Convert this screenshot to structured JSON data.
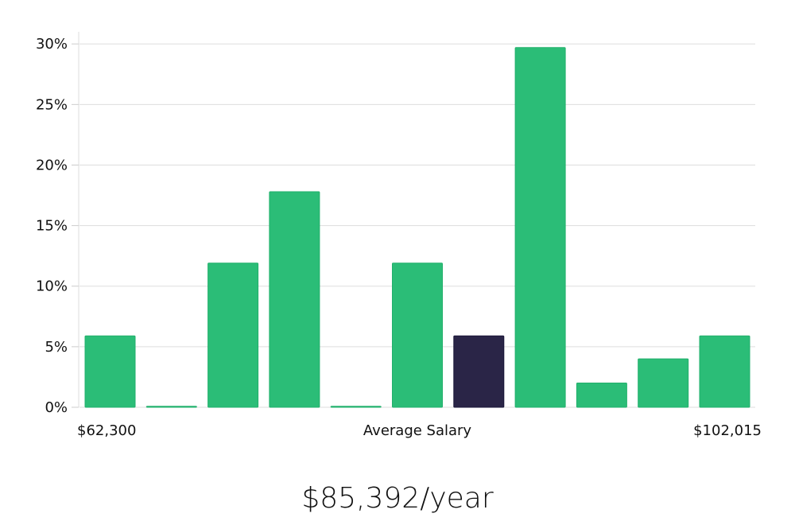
{
  "chart_data": {
    "type": "bar",
    "values": [
      5.9,
      0.0,
      11.9,
      17.8,
      0.0,
      11.9,
      5.9,
      29.7,
      2.0,
      4.0,
      5.9
    ],
    "highlight_index": 6,
    "ylim": [
      0,
      31
    ],
    "yticks": [
      "0%",
      "5%",
      "10%",
      "15%",
      "20%",
      "25%",
      "30%"
    ],
    "ytick_values": [
      0,
      5,
      10,
      15,
      20,
      25,
      30
    ],
    "x_min_label": "$62,300",
    "x_center_label": "Average Salary",
    "x_max_label": "$102,015",
    "grid": true,
    "colors": {
      "bar": "#2bbd77",
      "highlight": "#2a2547",
      "grid": "#dddddd"
    }
  },
  "salary_text": "$85,392/year"
}
